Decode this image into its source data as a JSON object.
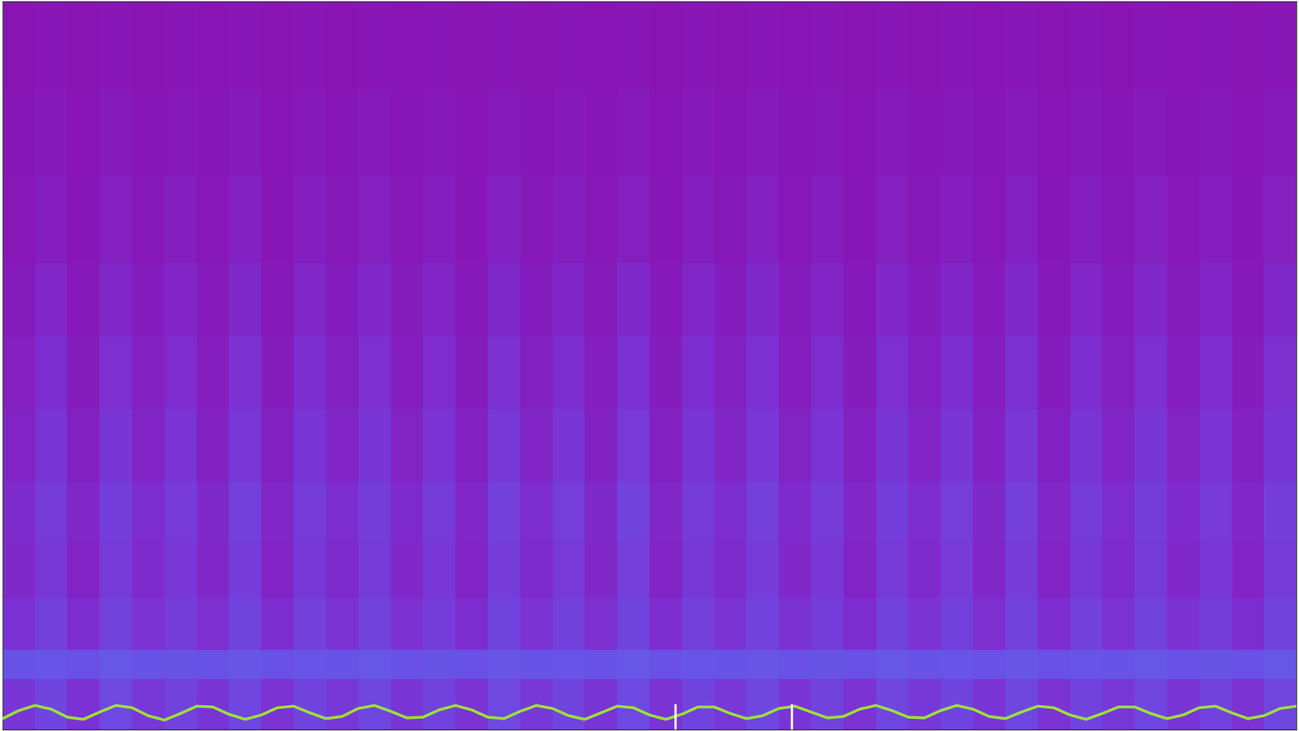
{
  "chart_data": {
    "type": "heatmap",
    "tick_labels": false,
    "xlim": [
      0,
      40
    ],
    "ylim": [
      0,
      100
    ],
    "color_range": [
      0,
      1
    ],
    "y_edges": [
      100,
      88,
      76,
      64,
      54,
      44,
      34,
      26,
      18,
      11,
      7,
      0
    ],
    "cells": [
      [
        0.02,
        0.04,
        0.02,
        0.05,
        0.02,
        0.04,
        0.03,
        0.05,
        0.02,
        0.04,
        0.02,
        0.05,
        0.03,
        0.04,
        0.02,
        0.05,
        0.02,
        0.04,
        0.03,
        0.05,
        0.02,
        0.04,
        0.02,
        0.05,
        0.03,
        0.04,
        0.02,
        0.05,
        0.02,
        0.04,
        0.03,
        0.05,
        0.02,
        0.04,
        0.02,
        0.05,
        0.03,
        0.04,
        0.02,
        0.05
      ],
      [
        0.04,
        0.08,
        0.03,
        0.09,
        0.04,
        0.07,
        0.05,
        0.09,
        0.03,
        0.08,
        0.04,
        0.09,
        0.05,
        0.07,
        0.03,
        0.09,
        0.04,
        0.08,
        0.05,
        0.09,
        0.03,
        0.08,
        0.04,
        0.09,
        0.05,
        0.07,
        0.03,
        0.09,
        0.04,
        0.08,
        0.05,
        0.09,
        0.03,
        0.08,
        0.04,
        0.09,
        0.05,
        0.07,
        0.03,
        0.09
      ],
      [
        0.06,
        0.14,
        0.05,
        0.15,
        0.07,
        0.13,
        0.06,
        0.16,
        0.05,
        0.14,
        0.07,
        0.15,
        0.06,
        0.13,
        0.05,
        0.16,
        0.07,
        0.14,
        0.06,
        0.15,
        0.05,
        0.14,
        0.07,
        0.16,
        0.06,
        0.13,
        0.05,
        0.15,
        0.07,
        0.14,
        0.06,
        0.16,
        0.05,
        0.14,
        0.07,
        0.15,
        0.06,
        0.13,
        0.05,
        0.15
      ],
      [
        0.1,
        0.22,
        0.08,
        0.24,
        0.11,
        0.21,
        0.09,
        0.25,
        0.08,
        0.22,
        0.11,
        0.24,
        0.1,
        0.21,
        0.08,
        0.25,
        0.11,
        0.23,
        0.09,
        0.26,
        0.08,
        0.22,
        0.11,
        0.25,
        0.1,
        0.21,
        0.08,
        0.24,
        0.11,
        0.23,
        0.09,
        0.25,
        0.08,
        0.22,
        0.11,
        0.24,
        0.1,
        0.21,
        0.08,
        0.24
      ],
      [
        0.15,
        0.3,
        0.12,
        0.32,
        0.16,
        0.29,
        0.13,
        0.33,
        0.12,
        0.3,
        0.16,
        0.32,
        0.14,
        0.29,
        0.12,
        0.34,
        0.16,
        0.31,
        0.13,
        0.35,
        0.12,
        0.3,
        0.16,
        0.33,
        0.14,
        0.29,
        0.12,
        0.32,
        0.16,
        0.31,
        0.13,
        0.33,
        0.12,
        0.3,
        0.16,
        0.32,
        0.14,
        0.29,
        0.12,
        0.32
      ],
      [
        0.2,
        0.38,
        0.16,
        0.4,
        0.21,
        0.37,
        0.18,
        0.41,
        0.16,
        0.38,
        0.21,
        0.4,
        0.19,
        0.37,
        0.16,
        0.42,
        0.21,
        0.39,
        0.18,
        0.43,
        0.16,
        0.38,
        0.21,
        0.41,
        0.19,
        0.37,
        0.16,
        0.4,
        0.21,
        0.39,
        0.18,
        0.41,
        0.16,
        0.38,
        0.21,
        0.4,
        0.19,
        0.37,
        0.16,
        0.4
      ],
      [
        0.28,
        0.46,
        0.22,
        0.48,
        0.3,
        0.45,
        0.25,
        0.5,
        0.22,
        0.46,
        0.3,
        0.48,
        0.27,
        0.45,
        0.22,
        0.5,
        0.3,
        0.47,
        0.25,
        0.52,
        0.22,
        0.46,
        0.3,
        0.49,
        0.27,
        0.45,
        0.22,
        0.48,
        0.3,
        0.47,
        0.25,
        0.49,
        0.22,
        0.46,
        0.3,
        0.48,
        0.27,
        0.45,
        0.22,
        0.48
      ],
      [
        0.25,
        0.42,
        0.2,
        0.44,
        0.27,
        0.41,
        0.22,
        0.46,
        0.2,
        0.42,
        0.27,
        0.44,
        0.24,
        0.41,
        0.2,
        0.46,
        0.27,
        0.43,
        0.22,
        0.47,
        0.2,
        0.42,
        0.27,
        0.45,
        0.24,
        0.41,
        0.2,
        0.44,
        0.27,
        0.43,
        0.22,
        0.45,
        0.2,
        0.42,
        0.27,
        0.44,
        0.24,
        0.41,
        0.2,
        0.44
      ],
      [
        0.35,
        0.5,
        0.3,
        0.52,
        0.36,
        0.48,
        0.32,
        0.54,
        0.3,
        0.5,
        0.36,
        0.52,
        0.34,
        0.48,
        0.3,
        0.54,
        0.36,
        0.51,
        0.32,
        0.55,
        0.3,
        0.5,
        0.36,
        0.53,
        0.34,
        0.48,
        0.3,
        0.52,
        0.36,
        0.51,
        0.32,
        0.53,
        0.3,
        0.5,
        0.36,
        0.52,
        0.34,
        0.48,
        0.3,
        0.52
      ],
      [
        0.7,
        0.72,
        0.68,
        0.74,
        0.7,
        0.71,
        0.69,
        0.73,
        0.68,
        0.72,
        0.7,
        0.74,
        0.69,
        0.71,
        0.68,
        0.73,
        0.7,
        0.72,
        0.69,
        0.74,
        0.68,
        0.72,
        0.7,
        0.73,
        0.69,
        0.71,
        0.68,
        0.74,
        0.7,
        0.72,
        0.69,
        0.73,
        0.68,
        0.72,
        0.7,
        0.74,
        0.69,
        0.71,
        0.68,
        0.74
      ],
      [
        0.4,
        0.55,
        0.35,
        0.58,
        0.42,
        0.52,
        0.38,
        0.56,
        0.36,
        0.54,
        0.42,
        0.57,
        0.39,
        0.53,
        0.36,
        0.58,
        0.42,
        0.55,
        0.38,
        0.59,
        0.36,
        0.54,
        0.42,
        0.57,
        0.39,
        0.52,
        0.36,
        0.56,
        0.42,
        0.55,
        0.38,
        0.57,
        0.36,
        0.54,
        0.42,
        0.56,
        0.39,
        0.53,
        0.36,
        0.56
      ]
    ],
    "series": [
      {
        "type": "line",
        "color": "#9be03c",
        "x": [
          0,
          0.5,
          1,
          1.5,
          2,
          2.5,
          3,
          3.5,
          4,
          4.5,
          5,
          5.5,
          6,
          6.5,
          7,
          7.5,
          8,
          8.5,
          9,
          9.5,
          10,
          10.5,
          11,
          11.5,
          12,
          12.5,
          13,
          13.5,
          14,
          14.5,
          15,
          15.5,
          16,
          16.5,
          17,
          17.5,
          18,
          18.5,
          19,
          19.5,
          20,
          20.5,
          21,
          21.5,
          22,
          22.5,
          23,
          23.5,
          24,
          24.5,
          25,
          25.5,
          26,
          26.5,
          27,
          27.5,
          28,
          28.5,
          29,
          29.5,
          30,
          30.5,
          31,
          31.5,
          32,
          32.5,
          33,
          33.5,
          34,
          34.5,
          35,
          35.5,
          36,
          36.5,
          37,
          37.5,
          38,
          38.5,
          39,
          39.5,
          40
        ],
        "values": [
          1.5,
          2.6,
          3.3,
          2.8,
          1.7,
          1.4,
          2.4,
          3.3,
          3.0,
          1.9,
          1.3,
          2.2,
          3.2,
          3.1,
          2.1,
          1.4,
          2.0,
          3.0,
          3.2,
          2.3,
          1.5,
          1.8,
          2.9,
          3.3,
          2.5,
          1.6,
          1.7,
          2.7,
          3.3,
          2.7,
          1.7,
          1.5,
          2.5,
          3.3,
          2.9,
          1.9,
          1.4,
          2.3,
          3.2,
          3.0,
          2.0,
          1.4,
          2.1,
          3.1,
          3.1,
          2.2,
          1.5,
          1.9,
          2.9,
          3.2,
          2.4,
          1.6,
          1.8,
          2.8,
          3.3,
          2.6,
          1.7,
          1.6,
          2.6,
          3.3,
          2.8,
          1.8,
          1.5,
          2.4,
          3.2,
          3.0,
          2.0,
          1.4,
          2.2,
          3.1,
          3.1,
          2.2,
          1.5,
          2.0,
          3.0,
          3.2,
          2.3,
          1.5,
          1.9,
          2.9,
          3.2
        ]
      },
      {
        "type": "vlines",
        "color": "#ffffff",
        "x": [
          20.8,
          24.4
        ],
        "values": [
          3.5,
          3.5
        ]
      }
    ]
  }
}
